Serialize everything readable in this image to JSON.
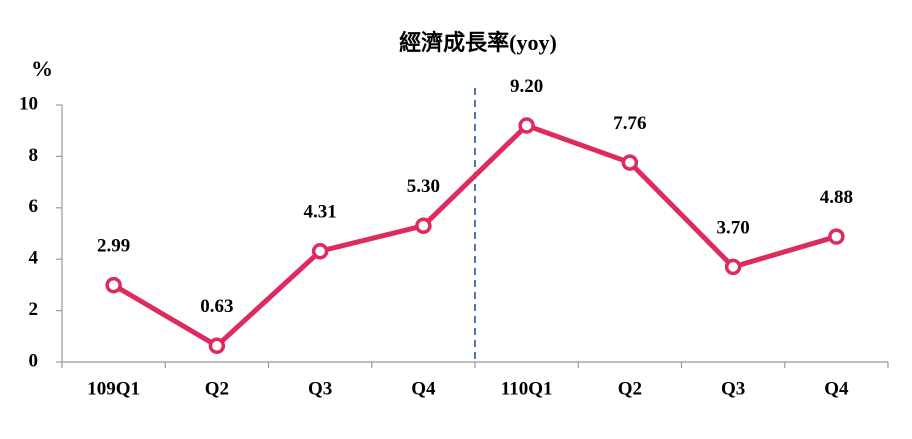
{
  "chart_data": {
    "type": "line",
    "title": "經濟成長率(yoy)",
    "y_label": "%",
    "categories": [
      "109Q1",
      "Q2",
      "Q3",
      "Q4",
      "110Q1",
      "Q2",
      "Q3",
      "Q4"
    ],
    "values": [
      2.99,
      0.63,
      4.31,
      5.3,
      9.2,
      7.76,
      3.7,
      4.88
    ],
    "value_labels": [
      "2.99",
      "0.63",
      "4.31",
      "5.30",
      "9.20",
      "7.76",
      "3.70",
      "4.88"
    ],
    "color": "#de2b5e",
    "ylim": [
      0,
      10
    ],
    "yticks": [
      0,
      2,
      4,
      6,
      8,
      10
    ],
    "grid": false
  }
}
